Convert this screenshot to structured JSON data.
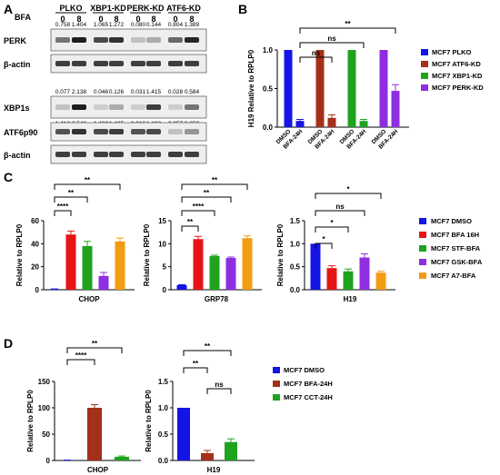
{
  "panels": {
    "A": "A",
    "B": "B",
    "C": "C",
    "D": "D"
  },
  "blot": {
    "treatment_label": "BFA",
    "groups": [
      "PLKO",
      "XBP1-KD",
      "PERK-KD",
      "ATF6-KD"
    ],
    "doses": [
      "0",
      "8",
      "0",
      "8",
      "0",
      "8",
      "0",
      "8"
    ],
    "rows": [
      {
        "label": "PERK",
        "quant": [
          "0.758",
          "1.404",
          "1.065",
          "1.272",
          "0.080",
          "0.144",
          "0.804",
          "1.389"
        ]
      },
      {
        "label": "β-actin",
        "quant": []
      },
      {
        "label": "XBP1s",
        "quant": [
          "0.077",
          "2.138",
          "0.046",
          "0.126",
          "0.031",
          "1.415",
          "0.028",
          "0.584"
        ],
        "quant_below": [
          "1.418",
          "2.548",
          "1.482",
          "1.405",
          "0.916",
          "1.198",
          "0.057",
          "0.359"
        ]
      },
      {
        "label": "ATF6p90",
        "quant": []
      },
      {
        "label": "β-actin",
        "quant": []
      }
    ]
  },
  "chart_data": [
    {
      "id": "B",
      "type": "bar",
      "ylabel": "H19 Relative to RPLP0",
      "ylim": [
        0,
        1.0
      ],
      "yticks": [
        "0.0",
        "0.5",
        "1.0"
      ],
      "groups": [
        {
          "series": "MCF7 PLKO",
          "labels": [
            "DMSO",
            "BFA-24H"
          ],
          "values": [
            1.0,
            0.08
          ],
          "errors": [
            0,
            0.02
          ]
        },
        {
          "series": "MCF7 ATF6-KD",
          "labels": [
            "DMSO",
            "BFA-24H"
          ],
          "values": [
            1.0,
            0.12
          ],
          "errors": [
            0,
            0.04
          ]
        },
        {
          "series": "MCF7 XBP1-KD",
          "labels": [
            "DMSO",
            "BFA-24H"
          ],
          "values": [
            1.0,
            0.08
          ],
          "errors": [
            0,
            0.02
          ]
        },
        {
          "series": "MCF7 PERK-KD",
          "labels": [
            "DMSO",
            "BFA-24H"
          ],
          "values": [
            1.0,
            0.47
          ],
          "errors": [
            0,
            0.08
          ]
        }
      ],
      "legend": [
        {
          "name": "MCF7 PLKO",
          "color": "#1414e6"
        },
        {
          "name": "MCF7 ATF6-KD",
          "color": "#a5301a"
        },
        {
          "name": "MCF7 XBP1-KD",
          "color": "#1fa31f"
        },
        {
          "name": "MCF7 PERK-KD",
          "color": "#8e2ee0"
        }
      ],
      "sig": [
        "ns",
        "ns",
        "**"
      ]
    },
    {
      "id": "C1",
      "type": "bar",
      "xlabel": "CHOP",
      "ylabel": "Relative to RPLP0",
      "ylim": [
        0,
        60
      ],
      "yticks": [
        "0",
        "20",
        "40",
        "60"
      ],
      "values": [
        0.5,
        48,
        38,
        12,
        42
      ],
      "errors": [
        0.2,
        3,
        4,
        3,
        3
      ],
      "sig": [
        "****",
        "**",
        "**"
      ]
    },
    {
      "id": "C2",
      "type": "bar",
      "xlabel": "GRP78",
      "ylabel": "Relative to RPLP0",
      "ylim": [
        0,
        15
      ],
      "yticks": [
        "0",
        "5",
        "10",
        "15"
      ],
      "values": [
        1,
        11,
        7.3,
        6.9,
        11.2
      ],
      "errors": [
        0.1,
        0.6,
        0.2,
        0.2,
        0.5
      ],
      "sig": [
        "**",
        "****",
        "**",
        "**"
      ]
    },
    {
      "id": "C3",
      "type": "bar",
      "xlabel": "H19",
      "ylabel": "Relative to RPLP0",
      "ylim": [
        0,
        1.5
      ],
      "yticks": [
        "0.0",
        "0.5",
        "1.0",
        "1.5"
      ],
      "values": [
        1.0,
        0.47,
        0.4,
        0.7,
        0.37
      ],
      "errors": [
        0,
        0.05,
        0.05,
        0.08,
        0.03
      ],
      "sig": [
        "*",
        "*",
        "ns",
        "*"
      ]
    },
    {
      "id": "D1",
      "type": "bar",
      "xlabel": "CHOP",
      "ylabel": "Relative to RPLP0",
      "ylim": [
        0,
        150
      ],
      "yticks": [
        "0",
        "50",
        "100",
        "150"
      ],
      "values": [
        0.5,
        100,
        7
      ],
      "errors": [
        0.2,
        6,
        1.5
      ],
      "sig": [
        "****",
        "**"
      ]
    },
    {
      "id": "D2",
      "type": "bar",
      "xlabel": "H19",
      "ylabel": "Relative to RPLP0",
      "ylim": [
        0,
        1.5
      ],
      "yticks": [
        "0.0",
        "0.5",
        "1.0",
        "1.5"
      ],
      "values": [
        1.0,
        0.14,
        0.35
      ],
      "errors": [
        0,
        0.05,
        0.06
      ],
      "sig": [
        "**",
        "ns",
        "**"
      ]
    }
  ],
  "legend_c": [
    {
      "name": "MCF7 DMSO",
      "color": "#1414e6"
    },
    {
      "name": "MCF7 BFA 16H",
      "color": "#e61414"
    },
    {
      "name": "MCF7 STF-BFA",
      "color": "#1fa31f"
    },
    {
      "name": "MCF7 GSK-BFA",
      "color": "#8e2ee0"
    },
    {
      "name": "MCF7 A7-BFA",
      "color": "#f39c12"
    }
  ],
  "legend_d": [
    {
      "name": "MCF7 DMSO",
      "color": "#1414e6"
    },
    {
      "name": "MCF7 BFA-24H",
      "color": "#a5301a"
    },
    {
      "name": "MCF7 CCT-24H",
      "color": "#1fa31f"
    }
  ]
}
